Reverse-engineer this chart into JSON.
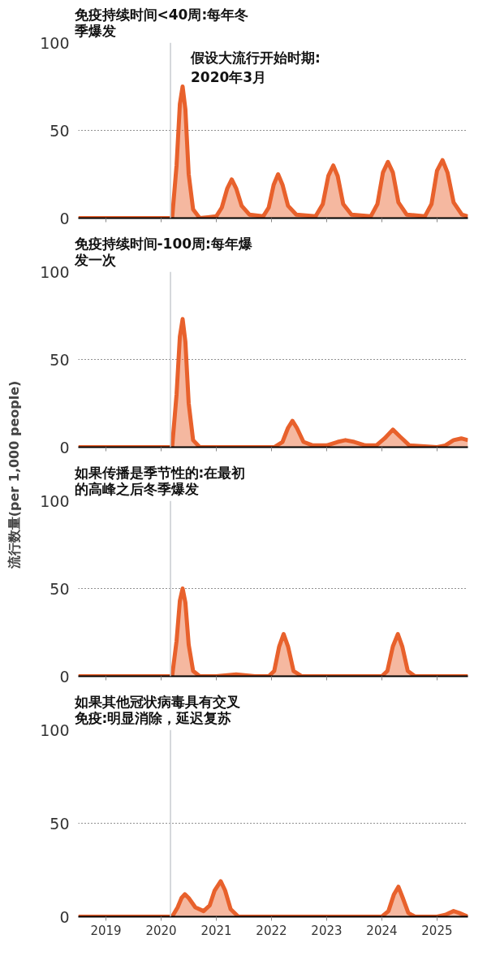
{
  "chart_data": [
    {
      "type": "area",
      "title": "免疫持续时间<40周:每年冬季爆发",
      "xlim": [
        2018.5,
        2025.56
      ],
      "xticks": [
        2019,
        2020,
        2021,
        2022,
        2023,
        2024,
        2025
      ],
      "ylim": [
        0,
        100
      ],
      "yticks": [
        0,
        50,
        100
      ],
      "grid": "y",
      "tick_labels": "y",
      "ref_lines": [
        {
          "axis": "x",
          "value": 2020.17,
          "label": "假设大流行开始时期:\n2020年3月",
          "color": "#c8ccd0"
        }
      ],
      "series": [
        {
          "color": "#e8612c",
          "x": [
            2018.5,
            2020.2,
            2020.28,
            2020.34,
            2020.39,
            2020.44,
            2020.5,
            2020.58,
            2020.7,
            2021.0,
            2021.1,
            2021.2,
            2021.28,
            2021.36,
            2021.46,
            2021.6,
            2021.85,
            2021.95,
            2022.04,
            2022.12,
            2022.2,
            2022.3,
            2022.45,
            2022.8,
            2022.93,
            2023.03,
            2023.12,
            2023.2,
            2023.3,
            2023.45,
            2023.8,
            2023.92,
            2024.02,
            2024.11,
            2024.2,
            2024.3,
            2024.45,
            2024.78,
            2024.9,
            2025.0,
            2025.1,
            2025.19,
            2025.3,
            2025.45,
            2025.56
          ],
          "values": [
            0,
            0,
            30,
            65,
            75,
            62,
            25,
            5,
            0,
            1,
            6,
            17,
            22,
            17,
            7,
            2,
            1,
            6,
            19,
            25,
            19,
            7,
            2,
            1,
            8,
            24,
            30,
            24,
            8,
            2,
            1,
            8,
            26,
            32,
            26,
            9,
            2,
            1,
            8,
            27,
            33,
            26,
            9,
            2,
            1
          ]
        }
      ]
    },
    {
      "type": "area",
      "title": "免疫持续时间-100周:每年爆发一次",
      "ylabel": "流行数量(per 1,000 people)",
      "xlim": [
        2018.5,
        2025.56
      ],
      "xticks": [
        2019,
        2020,
        2021,
        2022,
        2023,
        2024,
        2025
      ],
      "ylim": [
        0,
        100
      ],
      "yticks": [
        0,
        50,
        100
      ],
      "grid": "y",
      "tick_labels": "y",
      "ref_lines": [
        {
          "axis": "x",
          "value": 2020.17,
          "color": "#c8ccd0"
        }
      ],
      "series": [
        {
          "color": "#e8612c",
          "x": [
            2018.5,
            2020.2,
            2020.28,
            2020.34,
            2020.39,
            2020.44,
            2020.5,
            2020.58,
            2020.7,
            2022.05,
            2022.2,
            2022.3,
            2022.38,
            2022.46,
            2022.58,
            2022.75,
            2023.0,
            2023.2,
            2023.34,
            2023.5,
            2023.7,
            2023.9,
            2024.05,
            2024.2,
            2024.33,
            2024.5,
            2025.0,
            2025.15,
            2025.3,
            2025.44,
            2025.56
          ],
          "values": [
            0,
            0,
            30,
            63,
            73,
            60,
            25,
            4,
            0,
            0,
            3,
            11,
            15,
            11,
            3,
            1,
            1,
            3,
            4,
            3,
            1,
            1,
            5,
            10,
            6,
            1,
            0,
            1,
            4,
            5,
            4
          ]
        }
      ]
    },
    {
      "type": "area",
      "title": "如果传播是季节性的:在最初的高峰之后冬季爆发",
      "xlim": [
        2018.5,
        2025.56
      ],
      "xticks": [
        2019,
        2020,
        2021,
        2022,
        2023,
        2024,
        2025
      ],
      "ylim": [
        0,
        100
      ],
      "yticks": [
        0,
        50,
        100
      ],
      "grid": "y",
      "tick_labels": "y",
      "ref_lines": [
        {
          "axis": "x",
          "value": 2020.17,
          "color": "#c8ccd0"
        }
      ],
      "series": [
        {
          "color": "#e8612c",
          "x": [
            2018.5,
            2020.2,
            2020.28,
            2020.34,
            2020.39,
            2020.44,
            2020.5,
            2020.58,
            2020.7,
            2021.0,
            2021.36,
            2021.7,
            2021.95,
            2022.05,
            2022.14,
            2022.22,
            2022.3,
            2022.4,
            2022.55,
            2024.0,
            2024.1,
            2024.2,
            2024.29,
            2024.37,
            2024.47,
            2024.6,
            2025.56
          ],
          "values": [
            0,
            0,
            20,
            43,
            50,
            42,
            18,
            3,
            0,
            0,
            1,
            0,
            0,
            3,
            17,
            24,
            17,
            3,
            0,
            0,
            3,
            17,
            24,
            17,
            3,
            0,
            0
          ]
        }
      ]
    },
    {
      "type": "area",
      "title": "如果其他冠状病毒具有交叉免疫:明显消除，延迟复苏",
      "xlim": [
        2018.5,
        2025.56
      ],
      "xticks": [
        2019,
        2020,
        2021,
        2022,
        2023,
        2024,
        2025
      ],
      "ylim": [
        0,
        100
      ],
      "yticks": [
        0,
        50,
        100
      ],
      "grid": "y",
      "ref_lines": [
        {
          "axis": "x",
          "value": 2020.17,
          "color": "#c8ccd0"
        }
      ],
      "series": [
        {
          "color": "#e8612c",
          "x": [
            2018.5,
            2020.2,
            2020.3,
            2020.37,
            2020.43,
            2020.5,
            2020.62,
            2020.77,
            2020.88,
            2020.97,
            2021.08,
            2021.16,
            2021.26,
            2021.4,
            2024.0,
            2024.12,
            2024.22,
            2024.3,
            2024.38,
            2024.48,
            2024.6,
            2025.0,
            2025.15,
            2025.3,
            2025.4,
            2025.56
          ],
          "values": [
            0,
            0,
            5,
            10,
            12,
            10,
            5,
            3,
            6,
            14,
            19,
            14,
            4,
            0,
            0,
            3,
            12,
            16,
            10,
            2,
            0,
            0,
            1,
            3,
            2,
            0
          ]
        }
      ]
    }
  ]
}
